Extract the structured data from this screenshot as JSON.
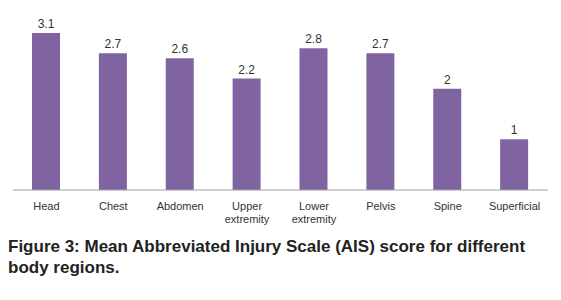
{
  "chart_data": {
    "type": "bar",
    "title": "Figure 3: Mean Abbreviated Injury Scale (AIS) score for different body regions.",
    "categories": [
      "Head",
      "Chest",
      "Abdomen",
      "Upper extremity",
      "Lower extremity",
      "Pelvis",
      "Spine",
      "Superficial"
    ],
    "values": [
      3.1,
      2.7,
      2.6,
      2.2,
      2.8,
      2.7,
      2,
      1
    ],
    "color": "#8064a2",
    "ylim": [
      0,
      3.1
    ],
    "grid": false,
    "data_labels": true,
    "tick_labels": "x"
  }
}
